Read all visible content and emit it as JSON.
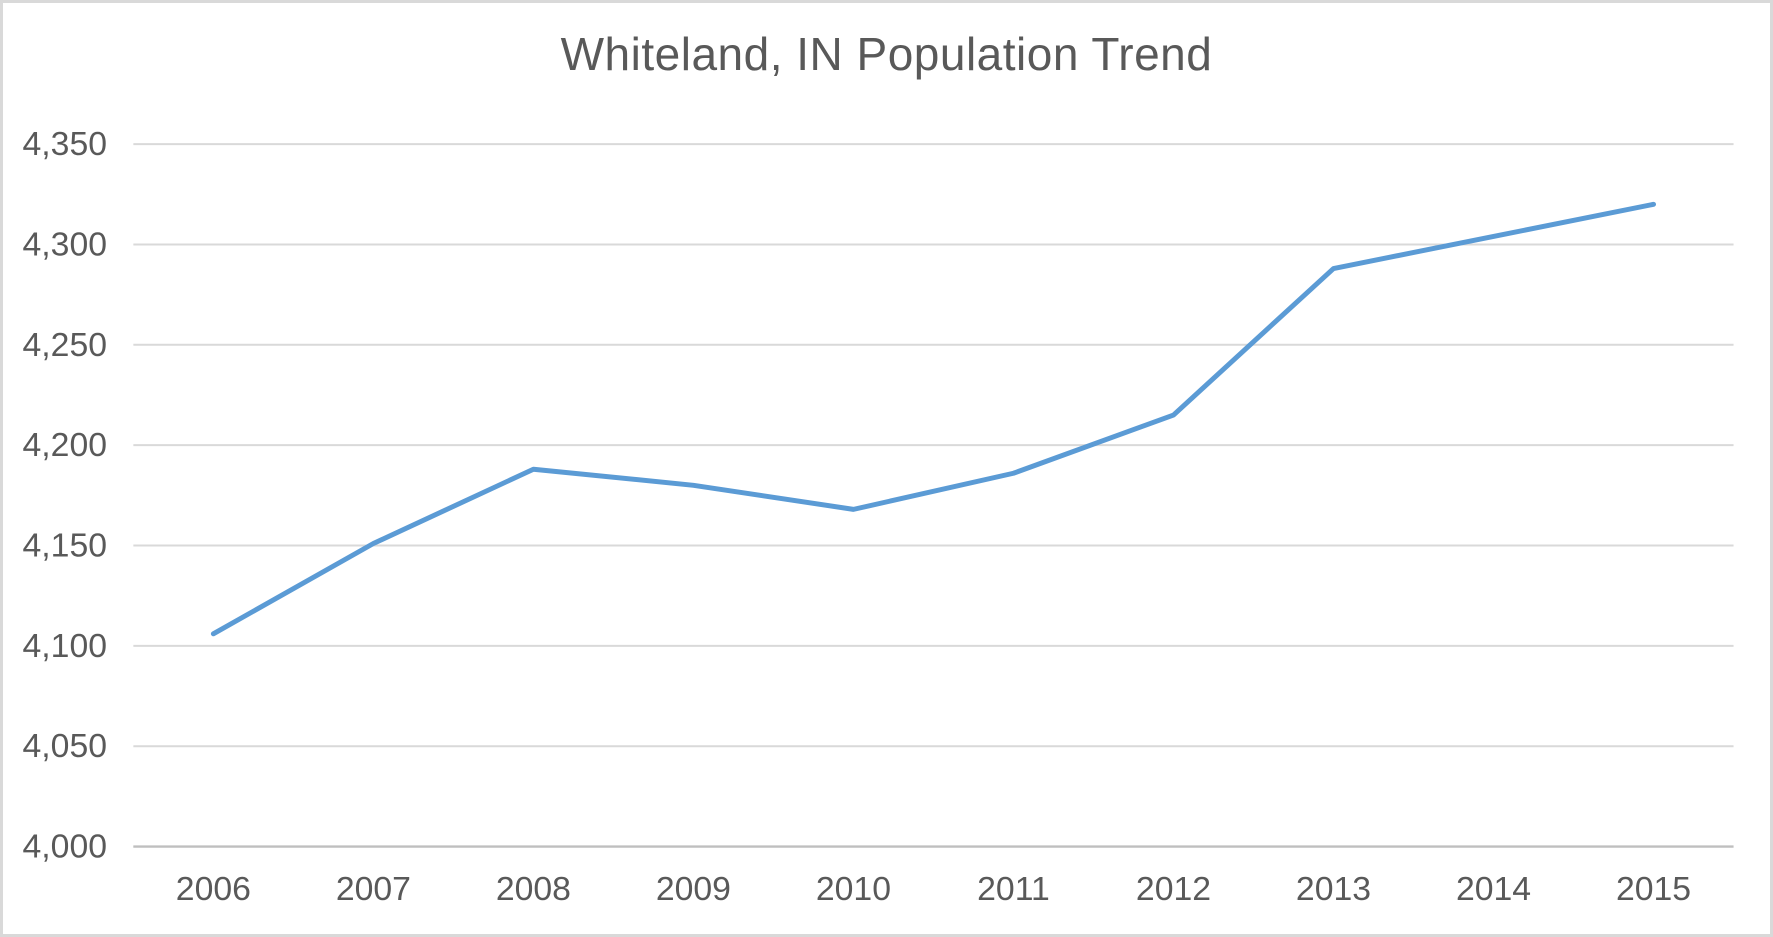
{
  "chart_data": {
    "type": "line",
    "title": "Whiteland, IN Population Trend",
    "categories": [
      "2006",
      "2007",
      "2008",
      "2009",
      "2010",
      "2011",
      "2012",
      "2013",
      "2014",
      "2015"
    ],
    "series": [
      {
        "name": "Population",
        "values": [
          4106,
          4151,
          4188,
          4180,
          4168,
          4186,
          4215,
          4288,
          4304,
          4320
        ]
      }
    ],
    "xlabel": "",
    "ylabel": "",
    "ylim": [
      4000,
      4350
    ],
    "ytick_step": 50,
    "ytick_labels": [
      "4,000",
      "4,050",
      "4,100",
      "4,150",
      "4,200",
      "4,250",
      "4,300",
      "4,350"
    ],
    "grid": true,
    "legend_position": "none",
    "colors": {
      "line": "#5B9BD5",
      "gridline": "#D9D9D9",
      "axis_line": "#BFBFBF",
      "text": "#595959",
      "background": "#FFFFFF",
      "frame_border": "#D9D9D9"
    }
  }
}
